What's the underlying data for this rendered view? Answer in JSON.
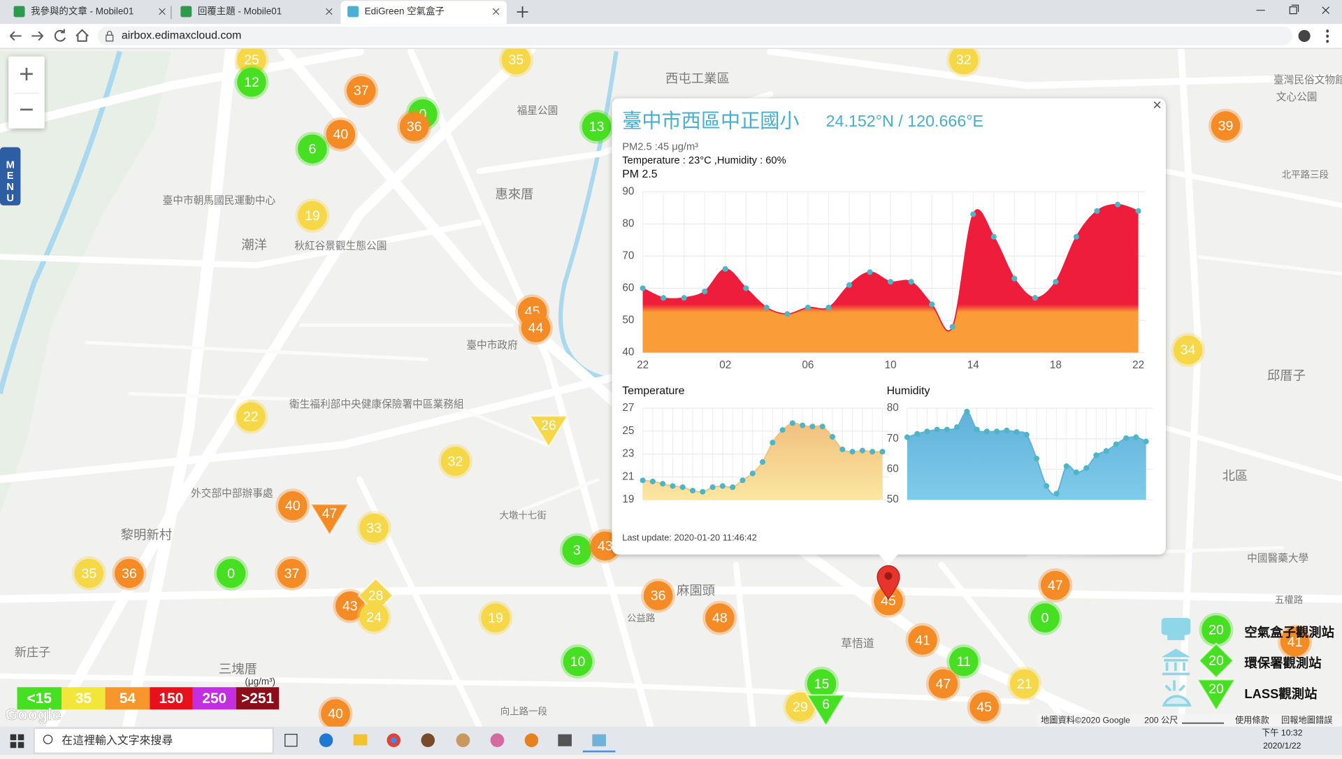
{
  "browser": {
    "tabs": [
      "我參與的文章 - Mobile01",
      "回覆主題 - Mobile01",
      "EdiGreen 空氣盒子"
    ],
    "url": "airbox.edimaxcloud.com"
  },
  "map": {
    "zoom": [
      "+",
      "−"
    ],
    "menu": "MENU",
    "markers": [
      {
        "value": 25,
        "color": "#f5d748",
        "shape": "circle"
      },
      {
        "value": 12,
        "color": "#47df22",
        "shape": "circle"
      },
      {
        "value": 35,
        "color": "#f5d748",
        "shape": "circle"
      },
      {
        "value": 37,
        "color": "#f58b25",
        "shape": "circle"
      },
      {
        "value": 0,
        "color": "#47df22",
        "shape": "circle"
      },
      {
        "value": 36,
        "color": "#f58b25",
        "shape": "circle"
      },
      {
        "value": 13,
        "color": "#47df22",
        "shape": "circle"
      },
      {
        "value": 40,
        "color": "#f58b25",
        "shape": "circle"
      },
      {
        "value": 6,
        "color": "#47df22",
        "shape": "circle"
      },
      {
        "value": 19,
        "color": "#f5d748",
        "shape": "circle"
      },
      {
        "value": 32,
        "color": "#f5d748",
        "shape": "circle"
      },
      {
        "value": 39,
        "color": "#f58b25",
        "shape": "circle"
      },
      {
        "value": 45,
        "color": "#f58b25",
        "shape": "circle"
      },
      {
        "value": 44,
        "color": "#f58b25",
        "shape": "circle"
      },
      {
        "value": 34,
        "color": "#f5d748",
        "shape": "circle"
      },
      {
        "value": 22,
        "color": "#f5d748",
        "shape": "circle"
      },
      {
        "value": 26,
        "color": "#f5d748",
        "shape": "triangle"
      },
      {
        "value": 32,
        "color": "#f5d748",
        "shape": "circle"
      },
      {
        "value": 40,
        "color": "#f58b25",
        "shape": "circle"
      },
      {
        "value": 47,
        "color": "#f58b25",
        "shape": "triangle"
      },
      {
        "value": 33,
        "color": "#f5d748",
        "shape": "circle"
      },
      {
        "value": 35,
        "color": "#f5d748",
        "shape": "circle"
      },
      {
        "value": 36,
        "color": "#f58b25",
        "shape": "circle"
      },
      {
        "value": 0,
        "color": "#47df22",
        "shape": "circle"
      },
      {
        "value": 37,
        "color": "#f58b25",
        "shape": "circle"
      },
      {
        "value": 3,
        "color": "#47df22",
        "shape": "circle"
      },
      {
        "value": 43,
        "color": "#f58b25",
        "shape": "circle"
      },
      {
        "value": 43,
        "color": "#f58b25",
        "shape": "circle"
      },
      {
        "value": 28,
        "color": "#f5d748",
        "shape": "diamond"
      },
      {
        "value": 24,
        "color": "#f5d748",
        "shape": "circle"
      },
      {
        "value": 36,
        "color": "#f58b25",
        "shape": "circle"
      },
      {
        "value": 19,
        "color": "#f5d748",
        "shape": "circle"
      },
      {
        "value": 48,
        "color": "#f58b25",
        "shape": "circle"
      },
      {
        "value": 45,
        "color": "#f58b25",
        "shape": "circle"
      },
      {
        "value": 47,
        "color": "#f58b25",
        "shape": "circle"
      },
      {
        "value": 0,
        "color": "#47df22",
        "shape": "circle"
      },
      {
        "value": 41,
        "color": "#f58b25",
        "shape": "circle"
      },
      {
        "value": 11,
        "color": "#47df22",
        "shape": "circle"
      },
      {
        "value": 10,
        "color": "#47df22",
        "shape": "circle"
      },
      {
        "value": 47,
        "color": "#f58b25",
        "shape": "circle"
      },
      {
        "value": 21,
        "color": "#f5d748",
        "shape": "circle"
      },
      {
        "value": 45,
        "color": "#f58b25",
        "shape": "circle"
      },
      {
        "value": 15,
        "color": "#47df22",
        "shape": "circle"
      },
      {
        "value": 29,
        "color": "#f5d748",
        "shape": "circle"
      },
      {
        "value": 6,
        "color": "#47df22",
        "shape": "triangle"
      },
      {
        "value": 40,
        "color": "#f58b25",
        "shape": "circle"
      },
      {
        "value": 41,
        "color": "#f58b25",
        "shape": "circle"
      }
    ],
    "places": [
      "西屯工業區",
      "惠來厝",
      "潮洋",
      "秋紅谷景觀生態公園",
      "黎明新村",
      "三塊厝",
      "新庄子",
      "麻園頭",
      "邱厝子",
      "北區",
      "臺中市政府",
      "福星公園",
      "臺中市朝馬國民運動中心",
      "衛生福利部中央健康保險署中區業務組",
      "外交部中部辦事處",
      "草悟道",
      "臺灣民俗文物館",
      "文心公園",
      "北平路三段",
      "大墩十七街",
      "公益路",
      "向上路一段",
      "中國醫藥大學",
      "五權路"
    ],
    "legend": {
      "items": [
        {
          "label": "<15",
          "color": "#47df22"
        },
        {
          "label": "35",
          "color": "#f2e63a"
        },
        {
          "label": "54",
          "color": "#f7962a"
        },
        {
          "label": "150",
          "color": "#e8101a"
        },
        {
          "label": "250",
          "color": "#c22ee0"
        },
        {
          "label": ">251",
          "color": "#8b0f1a"
        }
      ],
      "unit": "(μg/m³)"
    },
    "stations": [
      {
        "label": "空氣盒子觀測站",
        "count": 20
      },
      {
        "label": "環保署觀測站",
        "count": 20
      },
      {
        "label": "LASS觀測站",
        "count": 20
      }
    ],
    "logo": "Google",
    "footer": [
      "地圖資料©2020 Google",
      "200 公尺",
      "使用條款",
      "回報地圖錯誤"
    ]
  },
  "popup": {
    "title": "臺中市西區中正國小",
    "coords": "24.152°N / 120.666°E",
    "close": "×",
    "pm_line": "PM2.5 :45 μg/m³",
    "weather_line": "Temperature : 23°C ,Humidity : 60%",
    "last_update": "Last update: 2020-01-20 11:46:42"
  },
  "chart_data": [
    {
      "type": "area",
      "title": "PM 2.5",
      "categories": [
        "22",
        null,
        null,
        null,
        "02",
        null,
        null,
        null,
        "06",
        null,
        null,
        null,
        "10",
        null,
        null,
        null,
        "14",
        null,
        null,
        null,
        "18",
        null,
        null,
        null,
        "22"
      ],
      "series": [
        {
          "name": "PM 2.5",
          "colors": [
            "#ee1d3c",
            "#fa9d38"
          ],
          "line_color": "#ee1d3c",
          "dot_color": "#4db6c6",
          "values": [
            60,
            57,
            57,
            59,
            66,
            60,
            54,
            52,
            54,
            54,
            61,
            65,
            62,
            62,
            55,
            48,
            83,
            76,
            63,
            57,
            62,
            76,
            84,
            86,
            84
          ]
        }
      ],
      "ylim": [
        40,
        90
      ],
      "yticks": [
        40,
        50,
        60,
        70,
        80,
        90
      ],
      "grid": true
    },
    {
      "type": "area",
      "title": "Temperature",
      "series": [
        {
          "name": "Temperature",
          "colors": [
            "#efb878",
            "#fbe7a0"
          ],
          "line_color": "#f0c27c",
          "dot_color": "#4db6c6",
          "values": [
            20.7,
            20.6,
            20.4,
            20.2,
            20.1,
            19.8,
            19.7,
            20.1,
            20.2,
            20.1,
            20.7,
            21.3,
            22.3,
            24.0,
            25.1,
            25.7,
            25.5,
            25.4,
            25.4,
            24.5,
            23.4,
            23.2,
            23.3,
            23.2,
            23.2
          ]
        }
      ],
      "ylim": [
        19,
        27
      ],
      "yticks": [
        19,
        21,
        23,
        25,
        27
      ],
      "grid": true
    },
    {
      "type": "area",
      "title": "Humidity",
      "series": [
        {
          "name": "Humidity",
          "colors": [
            "#5fb0da",
            "#7fcbea"
          ],
          "line_color": "#5fb0da",
          "dot_color": "#4db6c6",
          "values": [
            70.5,
            71.6,
            72.4,
            73.0,
            73.0,
            73.8,
            78.9,
            73.0,
            72.4,
            72.4,
            72.7,
            72.2,
            71.3,
            63.5,
            54.5,
            52.0,
            61.0,
            59.0,
            60.4,
            64.6,
            66.0,
            68.2,
            70.2,
            70.5,
            69.1
          ]
        }
      ],
      "ylim": [
        50,
        80
      ],
      "yticks": [
        50,
        60,
        70,
        80
      ],
      "grid": true
    }
  ],
  "taskbar": {
    "search": "在這裡輸入文字來搜尋",
    "time": "下午 10:32",
    "date": "2020/1/22"
  }
}
